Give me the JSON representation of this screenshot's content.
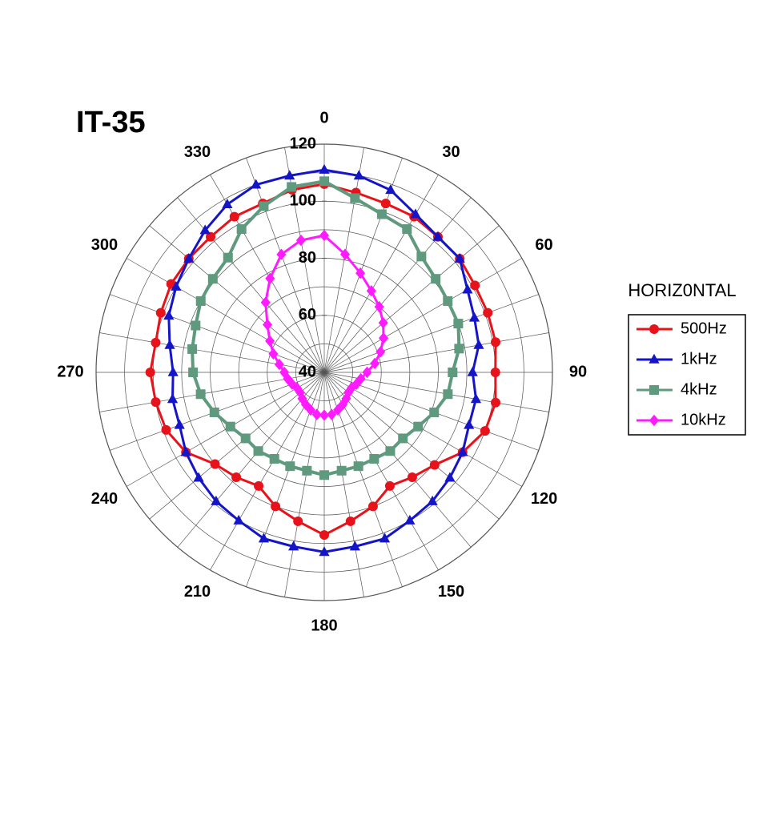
{
  "chart_data": {
    "type": "polar",
    "title": "IT-35",
    "direction": "clockwise",
    "zero_location": "top",
    "theta": [
      0,
      10,
      20,
      30,
      40,
      50,
      60,
      70,
      80,
      90,
      100,
      110,
      120,
      130,
      140,
      150,
      160,
      170,
      180,
      190,
      200,
      210,
      220,
      230,
      240,
      250,
      260,
      270,
      280,
      290,
      300,
      310,
      320,
      330,
      340,
      350
    ],
    "theta_ticks": [
      0,
      30,
      60,
      90,
      120,
      150,
      180,
      210,
      240,
      270,
      300,
      330
    ],
    "rlim": [
      40,
      120
    ],
    "rticks": [
      40,
      60,
      80,
      100,
      120
    ],
    "grid": true,
    "legend_title": "HORIZ0NTAL",
    "legend_position": "right",
    "series": [
      {
        "name": "500Hz",
        "color": "#e8121a",
        "marker": "circle",
        "values": [
          106,
          104,
          103,
          103,
          102,
          102,
          101,
          101,
          101,
          100,
          101,
          100,
          96,
          90.5,
          88,
          86,
          90,
          93,
          97,
          93,
          90,
          86,
          88,
          90,
          96,
          99,
          100,
          101,
          100,
          101,
          102,
          102,
          102,
          103,
          103,
          105
        ]
      },
      {
        "name": "1kHz",
        "color": "#1414c8",
        "marker": "triangle",
        "values": [
          111,
          110,
          108,
          104,
          102,
          102,
          98,
          96,
          95,
          92,
          94,
          94,
          96,
          97.5,
          99,
          100,
          102,
          102,
          103,
          102,
          102,
          100,
          99,
          97.5,
          96,
          94,
          94,
          93,
          95,
          98,
          100,
          102,
          105,
          108,
          110,
          110
        ]
      },
      {
        "name": "4kHz",
        "color": "#5f9a7e",
        "marker": "square",
        "values": [
          107,
          102,
          99,
          98,
          93,
          91,
          90,
          90,
          88,
          85,
          84,
          81,
          78,
          76,
          76,
          75,
          75,
          75,
          76,
          75,
          75,
          75,
          76,
          76,
          78,
          81,
          84,
          86,
          87,
          88,
          90,
          91,
          92.5,
          98,
          102,
          106
        ]
      },
      {
        "name": "10kHz",
        "color": "#ff1aff",
        "marker": "diamond",
        "values": [
          88,
          82,
          77,
          73,
          70,
          67,
          64,
          61,
          58,
          55,
          53,
          52,
          51,
          51,
          52,
          53,
          54,
          55,
          55,
          55,
          54,
          53,
          52,
          51,
          51,
          52,
          53,
          54,
          56,
          59,
          62,
          66,
          72,
          78,
          84,
          87
        ]
      }
    ]
  }
}
